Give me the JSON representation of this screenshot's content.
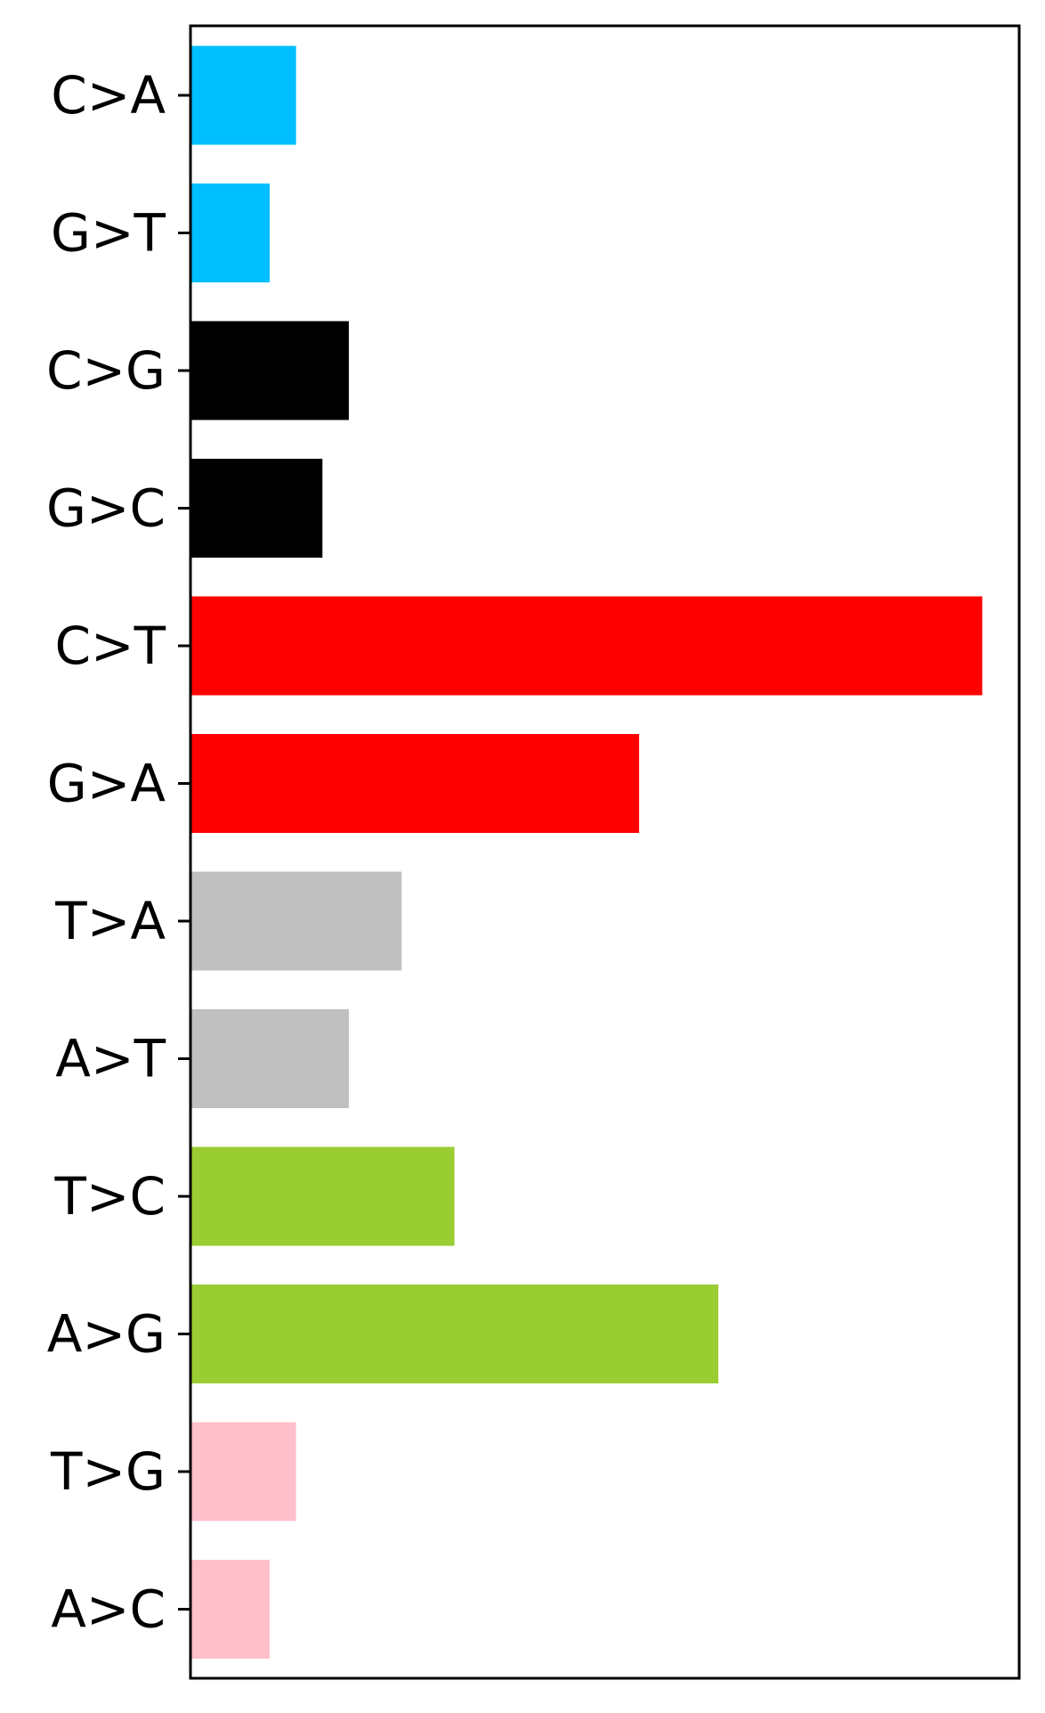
{
  "chart_data": {
    "type": "bar",
    "orientation": "horizontal",
    "categories": [
      "C>A",
      "G>T",
      "C>G",
      "G>C",
      "C>T",
      "G>A",
      "T>A",
      "A>T",
      "T>C",
      "A>G",
      "T>G",
      "A>C"
    ],
    "values": [
      4,
      3,
      6,
      5,
      30,
      17,
      8,
      6,
      10,
      20,
      4,
      3
    ],
    "colors": [
      "#00bfff",
      "#00bfff",
      "#000000",
      "#000000",
      "#ff0000",
      "#ff0000",
      "#c0c0c0",
      "#c0c0c0",
      "#9acd32",
      "#9acd32",
      "#ffc0cb",
      "#ffc0cb"
    ],
    "xlim": [
      0,
      31.4
    ],
    "x_ticks_shown": false,
    "grid": false,
    "title": "",
    "xlabel": "",
    "ylabel": ""
  }
}
